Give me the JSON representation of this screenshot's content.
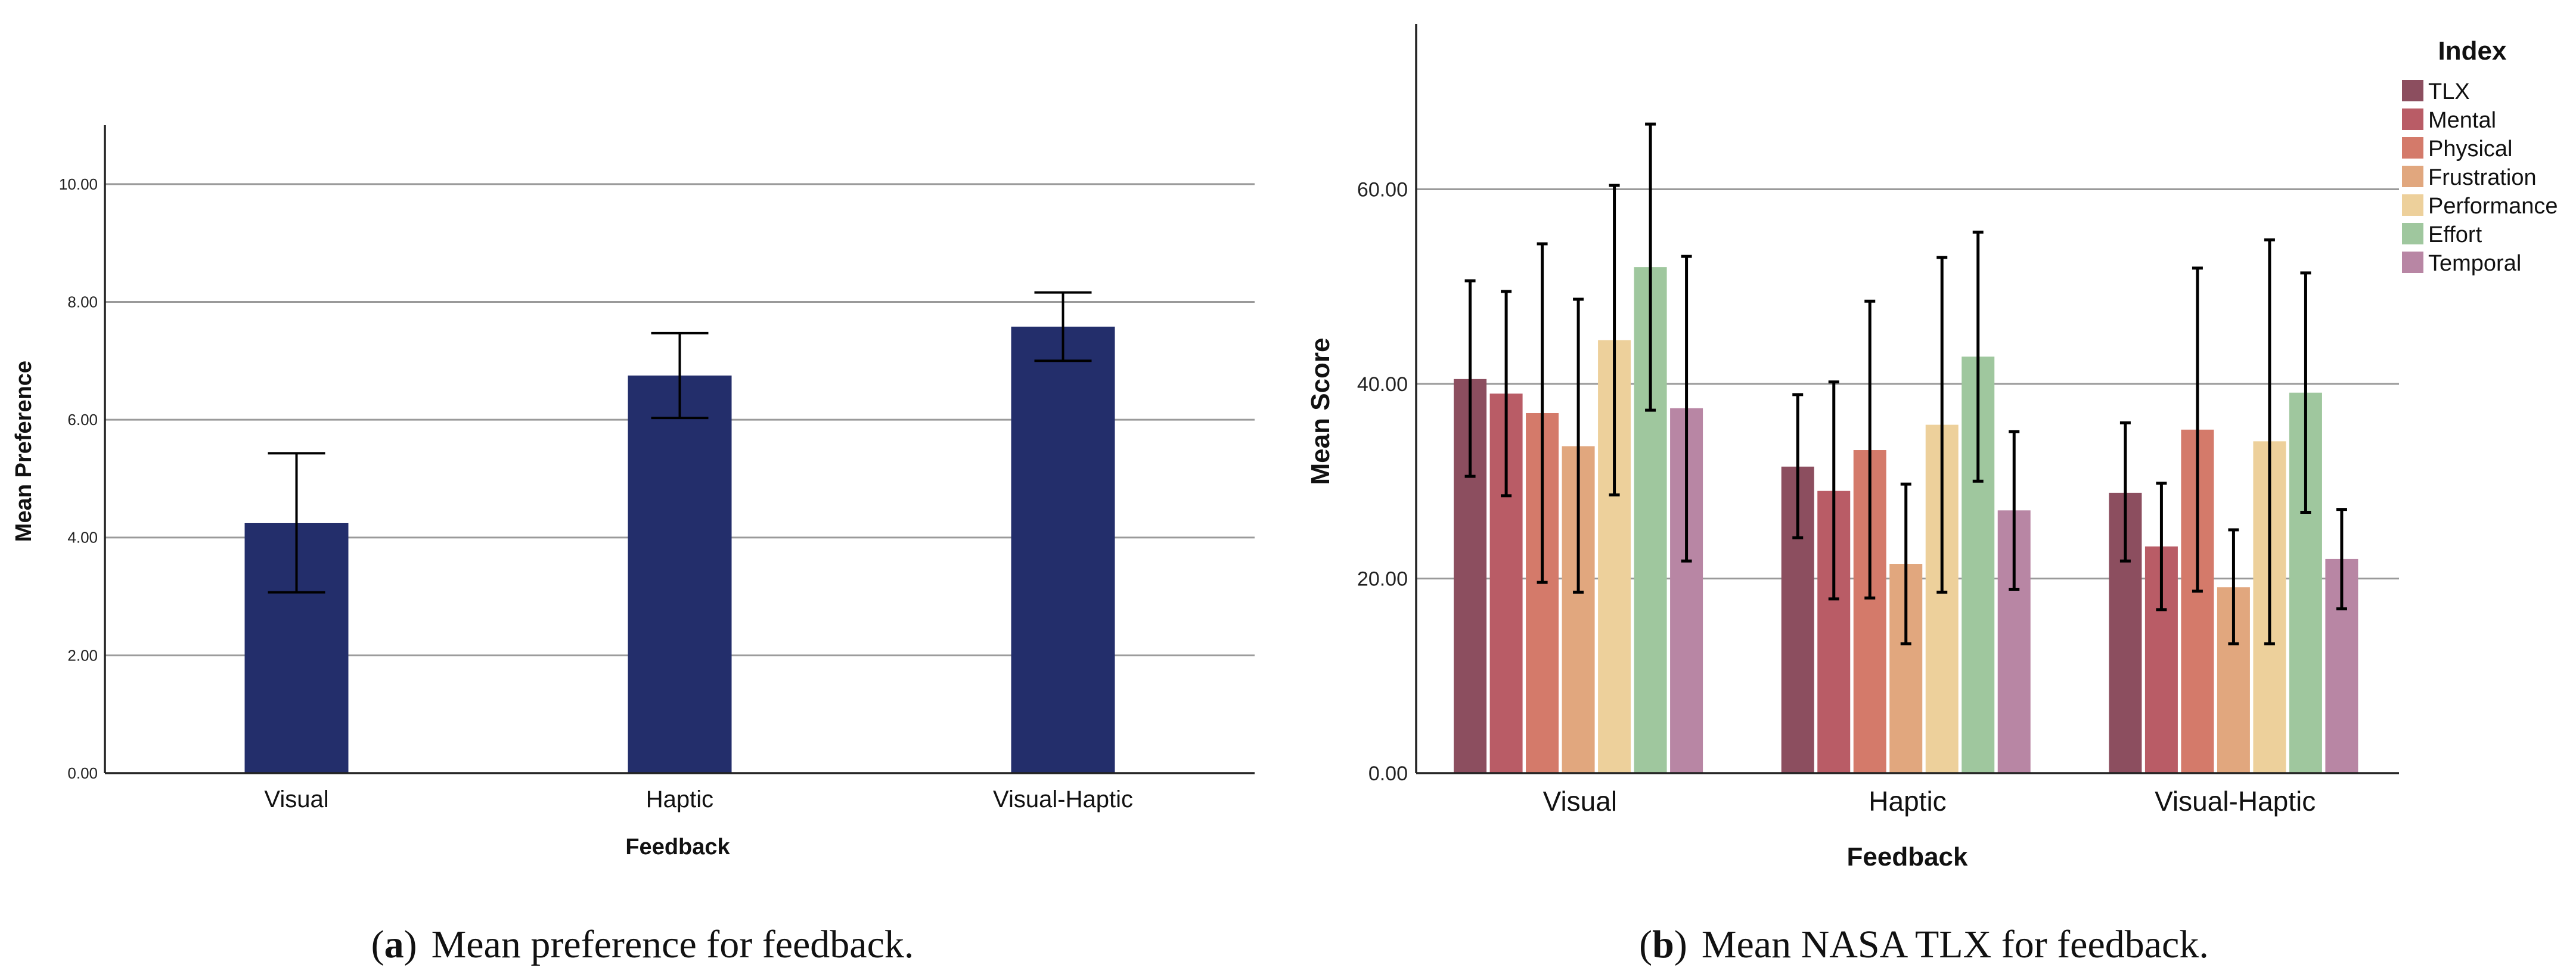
{
  "chart_data": [
    {
      "type": "bar",
      "xlabel": "Feedback",
      "ylabel": "Mean Preference",
      "categories": [
        "Visual",
        "Haptic",
        "Visual-Haptic"
      ],
      "values": [
        4.25,
        6.75,
        7.58
      ],
      "error_low": [
        3.07,
        6.03,
        7.0
      ],
      "error_high": [
        5.43,
        7.47,
        8.16
      ],
      "ylim": [
        0,
        11
      ],
      "yticks": [
        "0.00",
        "2.00",
        "4.00",
        "6.00",
        "8.00",
        "10.00"
      ],
      "grid": true,
      "colors": {
        "bar": "#232e6b"
      },
      "caption": {
        "label": "a",
        "prefix": "(",
        "suffix": ")",
        "text": "Mean preference for feedback."
      }
    },
    {
      "type": "bar",
      "xlabel": "Feedback",
      "ylabel": "Mean Score",
      "categories": [
        "Visual",
        "Haptic",
        "Visual-Haptic"
      ],
      "legend_title": "Index",
      "legend_position": "top-right",
      "series": [
        {
          "name": "TLX",
          "color": "#8c4e5f",
          "values": [
            40.5,
            31.5,
            28.8
          ],
          "error_low": [
            30.5,
            24.2,
            21.8
          ],
          "error_high": [
            50.6,
            38.9,
            36.0
          ]
        },
        {
          "name": "Mental",
          "color": "#b95c66",
          "values": [
            39.0,
            29.0,
            23.3
          ],
          "error_low": [
            28.5,
            17.9,
            16.8
          ],
          "error_high": [
            49.5,
            40.2,
            29.8
          ]
        },
        {
          "name": "Physical",
          "color": "#d47a6a",
          "values": [
            37.0,
            33.2,
            35.3
          ],
          "error_low": [
            19.6,
            18.0,
            18.7
          ],
          "error_high": [
            54.4,
            48.5,
            51.9
          ]
        },
        {
          "name": "Frustration",
          "color": "#e1a77e",
          "values": [
            33.6,
            21.5,
            19.1
          ],
          "error_low": [
            18.6,
            13.3,
            13.3
          ],
          "error_high": [
            48.7,
            29.7,
            25.0
          ]
        },
        {
          "name": "Performance",
          "color": "#edd09b",
          "values": [
            44.5,
            35.8,
            34.1
          ],
          "error_low": [
            28.6,
            18.6,
            13.3
          ],
          "error_high": [
            60.4,
            53.0,
            54.8
          ]
        },
        {
          "name": "Effort",
          "color": "#9fc79e",
          "values": [
            52.0,
            42.8,
            39.1
          ],
          "error_low": [
            37.3,
            30.0,
            26.8
          ],
          "error_high": [
            66.7,
            55.6,
            51.4
          ]
        },
        {
          "name": "Temporal",
          "color": "#b886a4",
          "values": [
            37.5,
            27.0,
            22.0
          ],
          "error_low": [
            21.8,
            18.9,
            16.9
          ],
          "error_high": [
            53.1,
            35.1,
            27.1
          ]
        }
      ],
      "ylim": [
        0,
        77
      ],
      "yticks": [
        "0.00",
        "20.00",
        "40.00",
        "60.00"
      ],
      "grid": true,
      "caption": {
        "label": "b",
        "prefix": "(",
        "suffix": ")",
        "text": "Mean NASA TLX for feedback."
      }
    }
  ]
}
